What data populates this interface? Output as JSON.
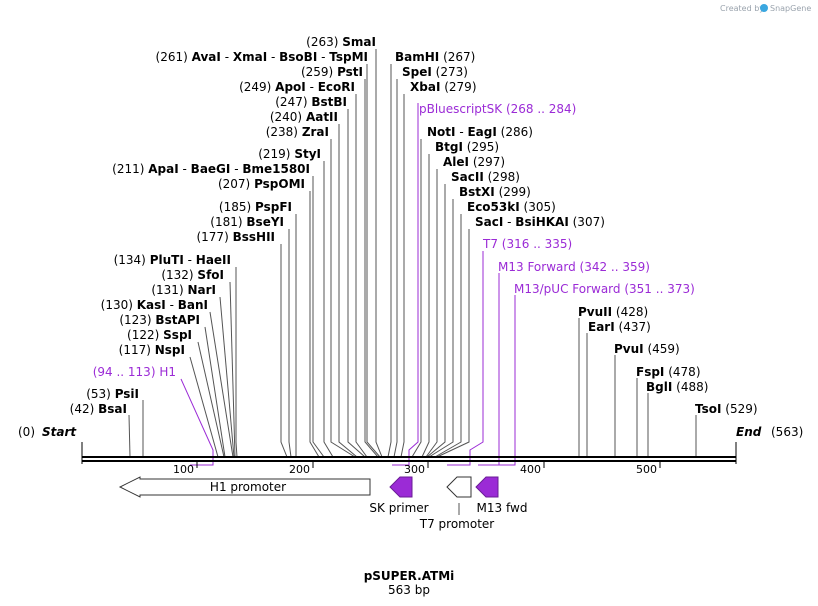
{
  "title": "pSUPER.ATMi",
  "length_label": "563 bp",
  "watermark": "Created by",
  "brand": "SnapGene",
  "start": {
    "label": "Start",
    "pos": "(0)"
  },
  "end": {
    "label": "End",
    "pos": "(563)"
  },
  "colors": {
    "feature": "#9b2bd6",
    "line": "#555555",
    "backbone": "#000000",
    "brand": "#3aa7e0"
  },
  "axis_ticks": [
    "100",
    "200",
    "300",
    "400",
    "500"
  ],
  "enzymes": [
    {
      "id": "smai",
      "pos": "(263)",
      "names": [
        "SmaI"
      ]
    },
    {
      "id": "avai",
      "pos": "(261)",
      "names": [
        "AvaI",
        "XmaI",
        "BsoBI",
        "TspMI"
      ]
    },
    {
      "id": "psti",
      "pos": "(259)",
      "names": [
        "PstI"
      ]
    },
    {
      "id": "apoi",
      "pos": "(249)",
      "names": [
        "ApoI",
        "EcoRI"
      ]
    },
    {
      "id": "bstbi",
      "pos": "(247)",
      "names": [
        "BstBI"
      ]
    },
    {
      "id": "aatii",
      "pos": "(240)",
      "names": [
        "AatII"
      ]
    },
    {
      "id": "zrai",
      "pos": "(238)",
      "names": [
        "ZraI"
      ]
    },
    {
      "id": "styi",
      "pos": "(219)",
      "names": [
        "StyI"
      ]
    },
    {
      "id": "apai",
      "pos": "(211)",
      "names": [
        "ApaI",
        "BaeGI",
        "Bme1580I"
      ]
    },
    {
      "id": "pspomi",
      "pos": "(207)",
      "names": [
        "PspOMI"
      ]
    },
    {
      "id": "pspfi",
      "pos": "(185)",
      "names": [
        "PspFI"
      ]
    },
    {
      "id": "bseyi",
      "pos": "(181)",
      "names": [
        "BseYI"
      ]
    },
    {
      "id": "bsshii",
      "pos": "(177)",
      "names": [
        "BssHII"
      ]
    },
    {
      "id": "pluti",
      "pos": "(134)",
      "names": [
        "PluTI",
        "HaeII"
      ]
    },
    {
      "id": "sfoi",
      "pos": "(132)",
      "names": [
        "SfoI"
      ]
    },
    {
      "id": "nari",
      "pos": "(131)",
      "names": [
        "NarI"
      ]
    },
    {
      "id": "kasi",
      "pos": "(130)",
      "names": [
        "KasI",
        "BanI"
      ]
    },
    {
      "id": "bstapi",
      "pos": "(123)",
      "names": [
        "BstAPI"
      ]
    },
    {
      "id": "sspi",
      "pos": "(122)",
      "names": [
        "SspI"
      ]
    },
    {
      "id": "nspi",
      "pos": "(117)",
      "names": [
        "NspI"
      ]
    },
    {
      "id": "psii",
      "pos": "(53)",
      "names": [
        "PsiI"
      ]
    },
    {
      "id": "bsai",
      "pos": "(42)",
      "names": [
        "BsaI"
      ]
    },
    {
      "id": "bamhi",
      "pos": "(267)",
      "names": [
        "BamHI"
      ]
    },
    {
      "id": "spei",
      "pos": "(273)",
      "names": [
        "SpeI"
      ]
    },
    {
      "id": "xbai",
      "pos": "(279)",
      "names": [
        "XbaI"
      ]
    },
    {
      "id": "noti",
      "pos": "(286)",
      "names": [
        "NotI",
        "EagI"
      ]
    },
    {
      "id": "btgi",
      "pos": "(295)",
      "names": [
        "BtgI"
      ]
    },
    {
      "id": "alei",
      "pos": "(297)",
      "names": [
        "AleI"
      ]
    },
    {
      "id": "sacii",
      "pos": "(298)",
      "names": [
        "SacII"
      ]
    },
    {
      "id": "bstxi",
      "pos": "(299)",
      "names": [
        "BstXI"
      ]
    },
    {
      "id": "eco53ki",
      "pos": "(305)",
      "names": [
        "Eco53kI"
      ]
    },
    {
      "id": "saci",
      "pos": "(307)",
      "names": [
        "SacI",
        "BsiHKAI"
      ]
    },
    {
      "id": "pvuii",
      "pos": "(428)",
      "names": [
        "PvuII"
      ]
    },
    {
      "id": "eari",
      "pos": "(437)",
      "names": [
        "EarI"
      ]
    },
    {
      "id": "pvui",
      "pos": "(459)",
      "names": [
        "PvuI"
      ]
    },
    {
      "id": "fspi",
      "pos": "(478)",
      "names": [
        "FspI"
      ]
    },
    {
      "id": "bgli",
      "pos": "(488)",
      "names": [
        "BglI"
      ]
    },
    {
      "id": "tsoi",
      "pos": "(529)",
      "names": [
        "TsoI"
      ]
    }
  ],
  "primer_sites": [
    {
      "id": "h1",
      "name": "H1",
      "range": "(94 .. 113)"
    },
    {
      "id": "pbluescriptsk",
      "name": "pBluescriptSK",
      "range": "(268 .. 284)"
    },
    {
      "id": "t7",
      "name": "T7",
      "range": "(316 .. 335)"
    },
    {
      "id": "m13forward",
      "name": "M13 Forward",
      "range": "(342 .. 359)"
    },
    {
      "id": "m13puc",
      "name": "M13/pUC Forward",
      "range": "(351 .. 373)"
    }
  ],
  "features": [
    {
      "id": "h1promoter",
      "label": "H1 promoter"
    },
    {
      "id": "skprimer",
      "label": "SK primer"
    },
    {
      "id": "t7promoter",
      "label": "T7 promoter"
    },
    {
      "id": "m13fwd",
      "label": "M13 fwd"
    }
  ]
}
